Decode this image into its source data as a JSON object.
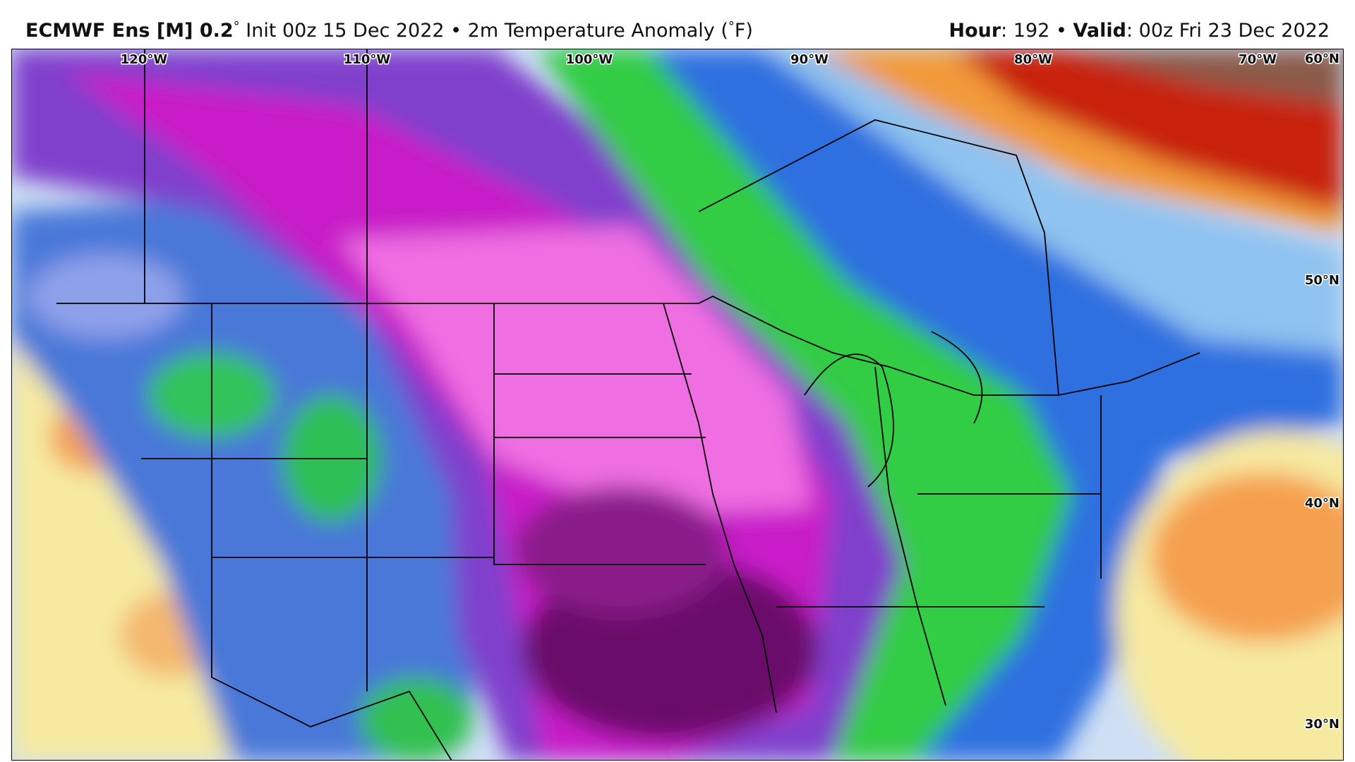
{
  "header": {
    "left": [
      "ECMWF Ens [M] 0.2",
      "°",
      " Init 00z 15 Dec 2022 • 2m Temperature Anomaly (",
      "°",
      "F)"
    ],
    "right": [
      "Hour",
      ": 192 • ",
      "Valid",
      ": 00z Fri 23 Dec 2022"
    ]
  },
  "map": {
    "longitude_labels": [
      "120°W",
      "110°W",
      "100°W",
      "90°W",
      "80°W",
      "70°W"
    ],
    "latitude_labels": [
      "60°N",
      "50°N",
      "40°N",
      "30°N"
    ]
  }
}
